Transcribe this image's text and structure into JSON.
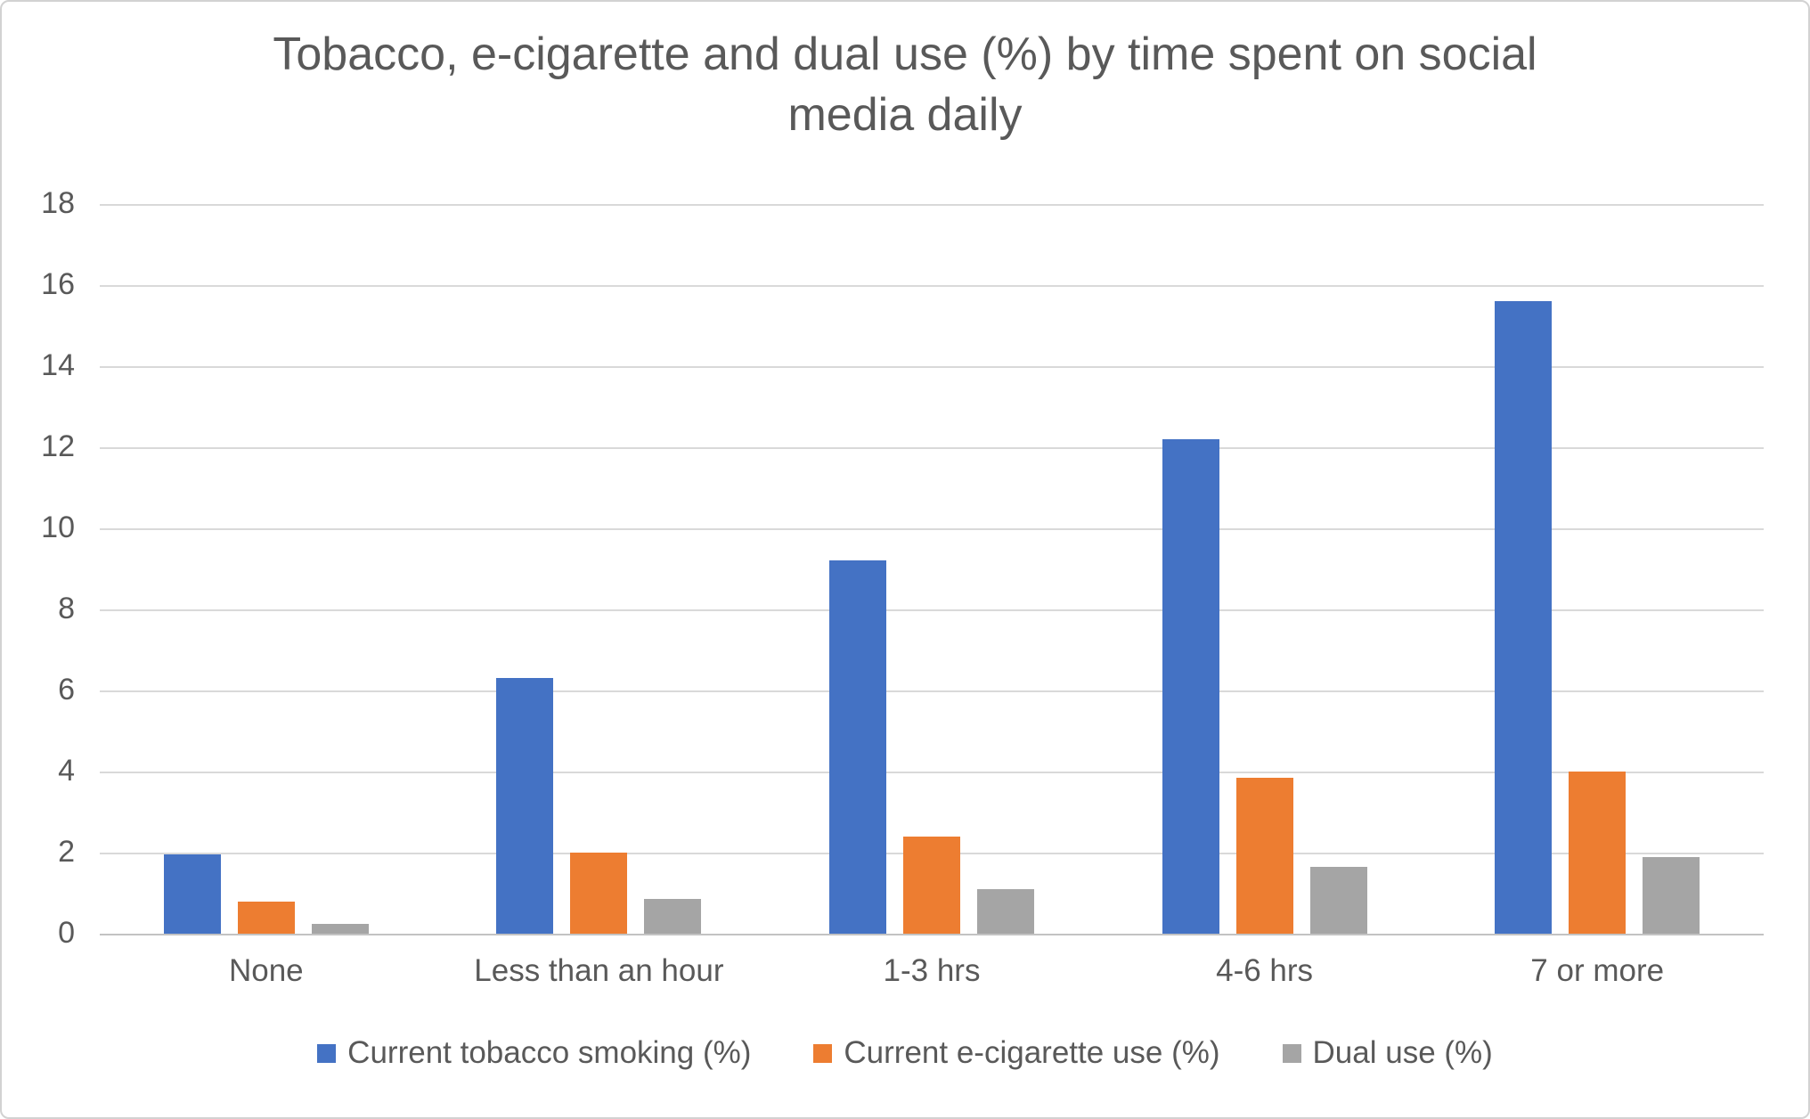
{
  "chart_data": {
    "type": "bar",
    "title": "Tobacco, e-cigarette and dual use (%) by time spent on social\nmedia daily",
    "categories": [
      "None",
      "Less than an hour",
      "1-3 hrs",
      "4-6 hrs",
      "7 or more"
    ],
    "series": [
      {
        "name": "Current tobacco smoking (%)",
        "color": "#4472C4",
        "values": [
          1.95,
          6.3,
          9.2,
          12.2,
          15.6
        ]
      },
      {
        "name": "Current e-cigarette use (%)",
        "color": "#ED7D31",
        "values": [
          0.8,
          2.0,
          2.4,
          3.85,
          4.0
        ]
      },
      {
        "name": "Dual use (%)",
        "color": "#A5A5A5",
        "values": [
          0.25,
          0.85,
          1.1,
          1.65,
          1.9
        ]
      }
    ],
    "xlabel": "",
    "ylabel": "",
    "ylim": [
      0,
      18
    ],
    "yticks": [
      0,
      2,
      4,
      6,
      8,
      10,
      12,
      14,
      16,
      18
    ],
    "grid": true,
    "legend_position": "bottom"
  },
  "style": {
    "grid_color": "#d9d9d9",
    "axis_color": "#c3c3c3",
    "text_color": "#595959",
    "background": "#ffffff"
  }
}
